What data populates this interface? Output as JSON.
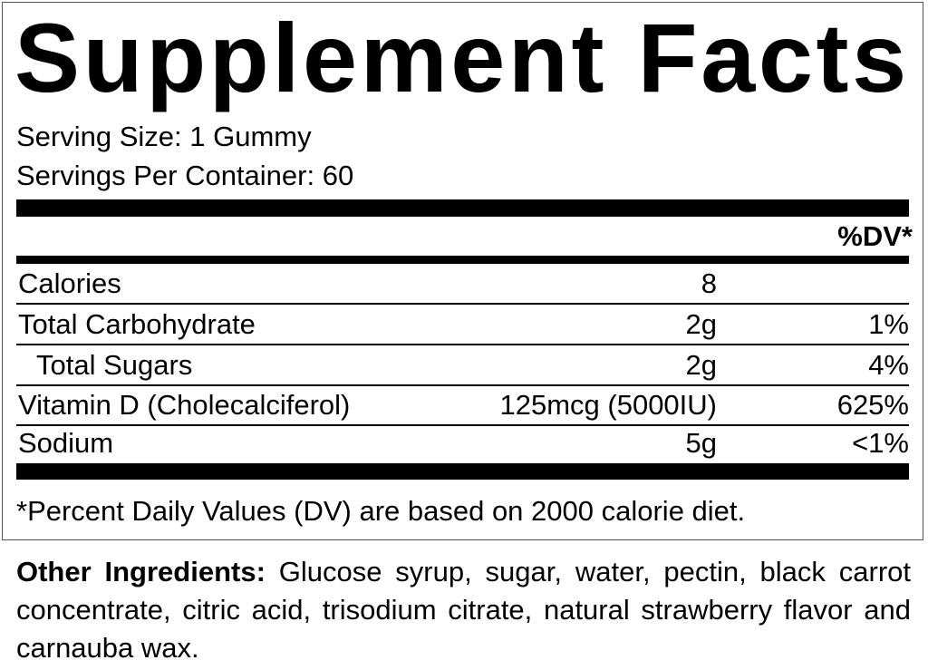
{
  "title": "Supplement Facts",
  "serving_size": "Serving Size: 1 Gummy",
  "servings_per_container": "Servings Per Container: 60",
  "dv_header": "%DV*",
  "rows": [
    {
      "name": "Calories",
      "amount": "8",
      "dv": ""
    },
    {
      "name": "Total Carbohydrate",
      "amount": "2g",
      "dv": "1%"
    },
    {
      "name": "Total Sugars",
      "amount": "2g",
      "dv": "4%"
    },
    {
      "name": "Vitamin D (Cholecalciferol)",
      "amount": "125mcg (5000IU)",
      "dv": "625%"
    },
    {
      "name": "Sodium",
      "amount": "5g",
      "dv": "<1%"
    }
  ],
  "footnote": "*Percent Daily Values (DV) are based on 2000 calorie diet.",
  "ingredients": {
    "label": "Other Ingredients:",
    "text": " Glucose syrup, sugar, water, pectin, black carrot concentrate, citric acid, trisodium citrate, natural strawberry flavor and carnauba wax."
  }
}
